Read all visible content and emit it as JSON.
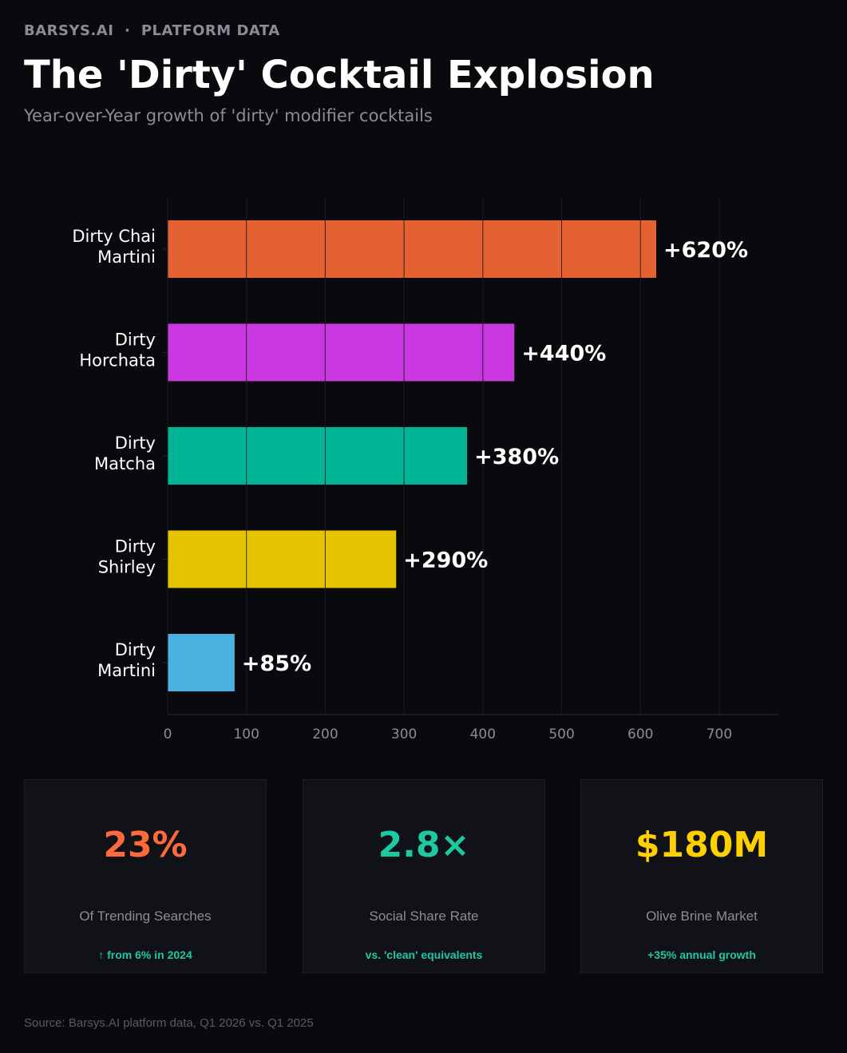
{
  "header": {
    "eyebrow": "BARSYS.AI  ·  PLATFORM DATA",
    "title": "The 'Dirty' Cocktail Explosion",
    "subtitle": "Year-over-Year growth of 'dirty' modifier cocktails"
  },
  "chart_data": {
    "type": "bar",
    "orientation": "horizontal",
    "categories": [
      [
        "Dirty Chai",
        "Martini"
      ],
      [
        "Dirty",
        "Horchata"
      ],
      [
        "Dirty",
        "Matcha"
      ],
      [
        "Dirty",
        "Shirley"
      ],
      [
        "Dirty",
        "Martini"
      ]
    ],
    "values": [
      620,
      440,
      380,
      290,
      85
    ],
    "value_labels": [
      "+620%",
      "+440%",
      "+380%",
      "+290%",
      "+85%"
    ],
    "colors": [
      "#e46232",
      "#c837e0",
      "#02b597",
      "#e6c300",
      "#4ab1e0"
    ],
    "xlim": [
      0,
      775
    ],
    "xticks": [
      0,
      100,
      200,
      300,
      400,
      500,
      600,
      700
    ],
    "grid": "vertical",
    "title": "",
    "xlabel": "",
    "ylabel": ""
  },
  "stats": [
    {
      "value": "23%",
      "label": "Of Trending Searches",
      "note": "↑ from 6% in 2024",
      "color": "#ff6a3d"
    },
    {
      "value": "2.8×",
      "label": "Social Share Rate",
      "note": "vs. 'clean' equivalents",
      "color": "#1ec9a2"
    },
    {
      "value": "$180M",
      "label": "Olive Brine Market",
      "note": "+35% annual growth",
      "color": "#ffd000"
    }
  ],
  "footer": {
    "source": "Source: Barsys.AI platform data, Q1 2026 vs. Q1 2025"
  }
}
